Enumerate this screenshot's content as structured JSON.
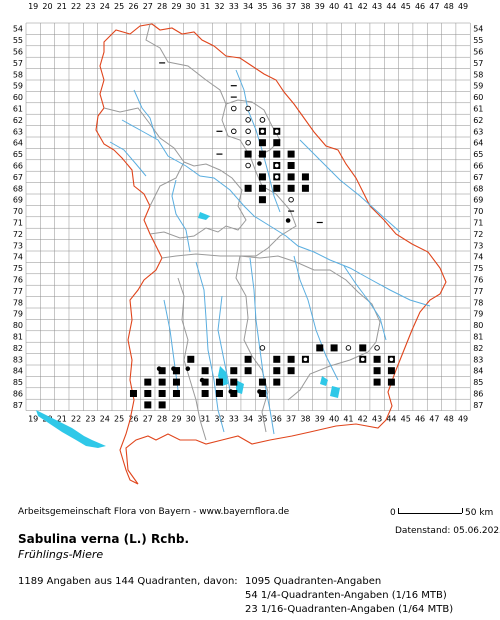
{
  "map": {
    "x_labels": [
      "19",
      "20",
      "21",
      "22",
      "23",
      "24",
      "25",
      "26",
      "27",
      "28",
      "29",
      "30",
      "31",
      "32",
      "33",
      "34",
      "35",
      "36",
      "37",
      "38",
      "39",
      "40",
      "41",
      "42",
      "43",
      "44",
      "45",
      "46",
      "47",
      "48",
      "49"
    ],
    "y_labels": [
      "54",
      "55",
      "56",
      "57",
      "58",
      "59",
      "60",
      "61",
      "62",
      "63",
      "64",
      "65",
      "66",
      "67",
      "68",
      "69",
      "70",
      "71",
      "72",
      "73",
      "74",
      "75",
      "76",
      "77",
      "78",
      "79",
      "80",
      "81",
      "82",
      "83",
      "84",
      "85",
      "86",
      "87"
    ],
    "colors": {
      "grid": "#8e8e8e",
      "border": "#e0451c",
      "districts": "#9a9a9a",
      "rivers": "#5aaee0",
      "lakes": "#2fc8e8",
      "marker": "#000000"
    },
    "legend_markers": [
      {
        "name": "filled-square",
        "meaning": "Quadranten-Angabe"
      },
      {
        "name": "filled-circle",
        "meaning": "1/4-Quadranten-Angabe"
      },
      {
        "name": "open-circle",
        "meaning": "historic or uncertain record"
      },
      {
        "name": "dash",
        "meaning": "other record"
      }
    ],
    "records_square": [
      [
        35,
        63
      ],
      [
        36,
        63
      ],
      [
        35,
        64
      ],
      [
        36,
        64
      ],
      [
        34,
        65
      ],
      [
        35,
        65
      ],
      [
        36,
        65
      ],
      [
        37,
        65
      ],
      [
        36,
        66
      ],
      [
        37,
        66
      ],
      [
        35,
        67
      ],
      [
        36,
        67
      ],
      [
        37,
        67
      ],
      [
        38,
        67
      ],
      [
        36,
        68
      ],
      [
        37,
        68
      ],
      [
        38,
        68
      ],
      [
        35,
        68
      ],
      [
        34,
        68
      ],
      [
        35,
        69
      ],
      [
        39,
        82
      ],
      [
        40,
        82
      ],
      [
        42,
        82
      ],
      [
        36,
        83
      ],
      [
        37,
        83
      ],
      [
        38,
        83
      ],
      [
        42,
        83
      ],
      [
        43,
        83
      ],
      [
        44,
        83
      ],
      [
        43,
        84
      ],
      [
        44,
        84
      ],
      [
        30,
        83
      ],
      [
        34,
        83
      ],
      [
        28,
        84
      ],
      [
        29,
        84
      ],
      [
        31,
        84
      ],
      [
        33,
        84
      ],
      [
        34,
        84
      ],
      [
        36,
        84
      ],
      [
        37,
        84
      ],
      [
        32,
        85
      ],
      [
        31,
        85
      ],
      [
        33,
        85
      ],
      [
        27,
        85
      ],
      [
        28,
        85
      ],
      [
        29,
        85
      ],
      [
        35,
        85
      ],
      [
        36,
        85
      ],
      [
        43,
        85
      ],
      [
        44,
        85
      ],
      [
        27,
        86
      ],
      [
        28,
        86
      ],
      [
        29,
        86
      ],
      [
        31,
        86
      ],
      [
        32,
        86
      ],
      [
        33,
        86
      ],
      [
        35,
        86
      ],
      [
        26,
        86
      ],
      [
        27,
        87
      ],
      [
        28,
        87
      ],
      [
        29,
        84
      ]
    ],
    "records_circle": [
      [
        35,
        66
      ],
      [
        37,
        71
      ],
      [
        29,
        84
      ],
      [
        28,
        84
      ],
      [
        31,
        85
      ],
      [
        33,
        86
      ],
      [
        30,
        84
      ],
      [
        35,
        86
      ]
    ],
    "records_open": [
      [
        33,
        61
      ],
      [
        34,
        61
      ],
      [
        34,
        62
      ],
      [
        35,
        62
      ],
      [
        33,
        63
      ],
      [
        34,
        63
      ],
      [
        35,
        63
      ],
      [
        34,
        64
      ],
      [
        36,
        66
      ],
      [
        36,
        67
      ],
      [
        34,
        66
      ],
      [
        35,
        62
      ],
      [
        36,
        63
      ],
      [
        37,
        69
      ],
      [
        35,
        82
      ],
      [
        43,
        82
      ],
      [
        41,
        82
      ],
      [
        38,
        83
      ],
      [
        42,
        83
      ],
      [
        44,
        83
      ]
    ],
    "records_dash": [
      [
        28,
        57
      ],
      [
        33,
        59
      ],
      [
        33,
        60
      ],
      [
        32,
        63
      ],
      [
        32,
        65
      ],
      [
        37,
        70
      ],
      [
        39,
        71
      ]
    ]
  },
  "scale_bar": {
    "left_label": "0",
    "right_label": "50 km"
  },
  "footer": {
    "credit": "Arbeitsgemeinschaft Flora von Bayern - www.bayernflora.de",
    "date": "Datenstand: 05.06.2025",
    "title": "Sabulina verna (L.) Rchb.",
    "subtitle": "Frühlings-Miere",
    "summary": "1189 Angaben aus 144 Quadranten, davon:",
    "breakdown": [
      "1095 Quadranten-Angaben",
      "54 1/4-Quadranten-Angaben (1/16 MTB)",
      "23 1/16-Quadranten-Angaben (1/64 MTB)"
    ]
  }
}
